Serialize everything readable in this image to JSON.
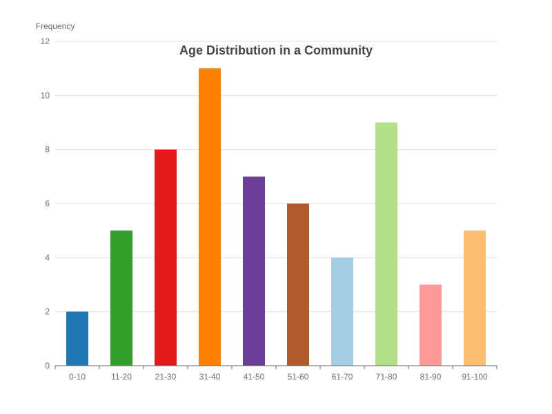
{
  "chart_data": {
    "type": "bar",
    "title": "Age Distribution in a Community",
    "xlabel": "",
    "ylabel": "Frequency",
    "categories": [
      "0-10",
      "11-20",
      "21-30",
      "31-40",
      "41-50",
      "51-60",
      "61-70",
      "71-80",
      "81-90",
      "91-100"
    ],
    "values": [
      2,
      5,
      8,
      11,
      7,
      6,
      4,
      9,
      3,
      5
    ],
    "colors": [
      "#1f78b4",
      "#33a02c",
      "#e31a1c",
      "#ff7f00",
      "#6a3d9a",
      "#b15928",
      "#a6cee3",
      "#b2df8a",
      "#fb9a99",
      "#fdbf6f"
    ],
    "ylim": [
      0,
      12
    ],
    "yticks": [
      "0",
      "2",
      "4",
      "6",
      "8",
      "10",
      "12"
    ],
    "grid": true,
    "legend": "none"
  }
}
